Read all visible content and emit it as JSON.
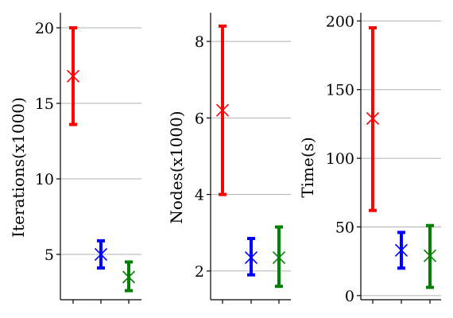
{
  "chart_data": [
    {
      "type": "errorbar",
      "ylabel": "Iterations(x1000)",
      "yticks": [
        5,
        10,
        15,
        20
      ],
      "ylim": [
        2.0,
        21.0
      ],
      "grid": "horizontal",
      "series": [
        {
          "color": "#ff0000",
          "mean": 16.8,
          "low": 13.6,
          "high": 20.0
        },
        {
          "color": "#0000ff",
          "mean": 5.0,
          "low": 4.1,
          "high": 5.9
        },
        {
          "color": "#008000",
          "mean": 3.5,
          "low": 2.6,
          "high": 4.5
        }
      ]
    },
    {
      "type": "errorbar",
      "ylabel": "Nodes(x1000)",
      "yticks": [
        2,
        4,
        6,
        8
      ],
      "ylim": [
        1.25,
        8.75
      ],
      "grid": "horizontal",
      "series": [
        {
          "color": "#ff0000",
          "mean": 6.2,
          "low": 4.0,
          "high": 8.4
        },
        {
          "color": "#0000ff",
          "mean": 2.35,
          "low": 1.9,
          "high": 2.85
        },
        {
          "color": "#008000",
          "mean": 2.35,
          "low": 1.6,
          "high": 3.15
        }
      ]
    },
    {
      "type": "errorbar",
      "ylabel": "Time(s)",
      "yticks": [
        0,
        50,
        100,
        150,
        200
      ],
      "ylim": [
        -3,
        206
      ],
      "grid": "horizontal",
      "series": [
        {
          "color": "#ff0000",
          "mean": 129,
          "low": 62,
          "high": 195
        },
        {
          "color": "#0000ff",
          "mean": 33,
          "low": 20,
          "high": 46
        },
        {
          "color": "#008000",
          "mean": 29,
          "low": 6,
          "high": 51
        }
      ]
    }
  ]
}
